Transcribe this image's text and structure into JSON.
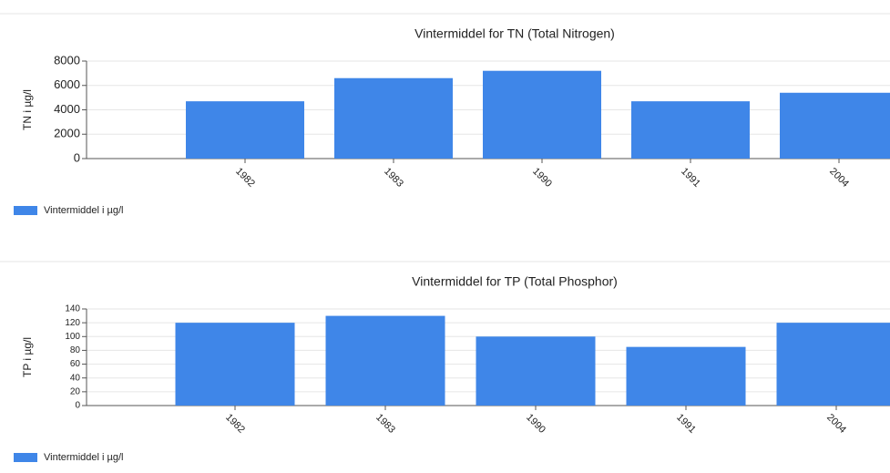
{
  "chart_data": [
    {
      "type": "bar",
      "title": "Vintermiddel for TN (Total Nitrogen)",
      "y_label": "TN i µg/l",
      "categories": [
        "1982",
        "1983",
        "1990",
        "1991",
        "2004"
      ],
      "series": [
        {
          "name": "Vintermiddel i µg/l",
          "color": "#3f86e8",
          "values": [
            4700,
            6600,
            7200,
            4700,
            5400
          ]
        }
      ],
      "ylim": [
        0,
        8000
      ],
      "yticks": [
        0,
        2000,
        4000,
        6000,
        8000
      ],
      "grid": true,
      "legend": "bottom-left"
    },
    {
      "type": "bar",
      "title": "Vintermiddel for TP (Total Phosphor)",
      "y_label": "TP i µg/l",
      "categories": [
        "1982",
        "1983",
        "1990",
        "1991",
        "2004"
      ],
      "series": [
        {
          "name": "Vintermiddel i µg/l",
          "color": "#3f86e8",
          "values": [
            120,
            130,
            100,
            85,
            120
          ]
        }
      ],
      "ylim": [
        0,
        140
      ],
      "yticks": [
        0,
        20,
        40,
        60,
        80,
        100,
        120,
        140
      ],
      "grid": true,
      "legend": "bottom-left"
    }
  ]
}
